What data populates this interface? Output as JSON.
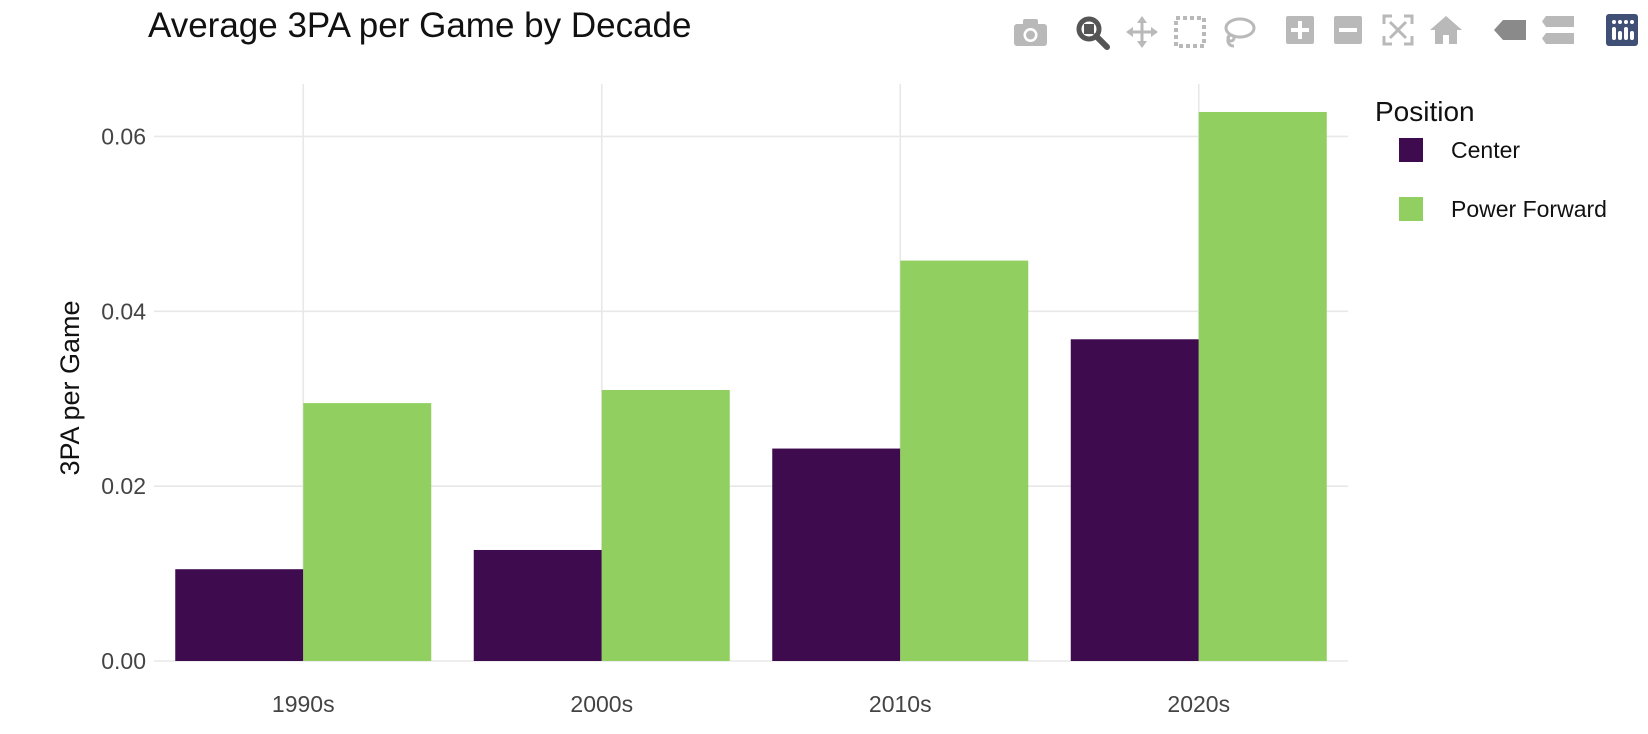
{
  "chart_data": {
    "type": "bar",
    "title": "Average 3PA per Game by Decade",
    "xlabel": "",
    "ylabel": "3PA per Game",
    "categories": [
      "1990s",
      "2000s",
      "2010s",
      "2020s"
    ],
    "series": [
      {
        "name": "Center",
        "color": "#3e0b4f",
        "values": [
          0.0105,
          0.0127,
          0.0243,
          0.0368
        ]
      },
      {
        "name": "Power Forward",
        "color": "#91cf60",
        "values": [
          0.0295,
          0.031,
          0.0458,
          0.0628
        ]
      }
    ],
    "ylim": [
      0,
      0.066
    ],
    "yticks": [
      0,
      0.02,
      0.04,
      0.06
    ],
    "ytick_labels": [
      "0.00",
      "0.02",
      "0.04",
      "0.06"
    ],
    "grid": true,
    "legend": {
      "title": "Position",
      "position": "top-right"
    }
  },
  "modebar": {
    "icons": [
      "camera-icon",
      "zoom-icon",
      "pan-icon",
      "box-select-icon",
      "lasso-icon",
      "zoom-in-icon",
      "zoom-out-icon",
      "autoscale-icon",
      "home-icon",
      "spike-lines-icon",
      "hover-compare-icon",
      "plotly-logo-icon"
    ]
  }
}
